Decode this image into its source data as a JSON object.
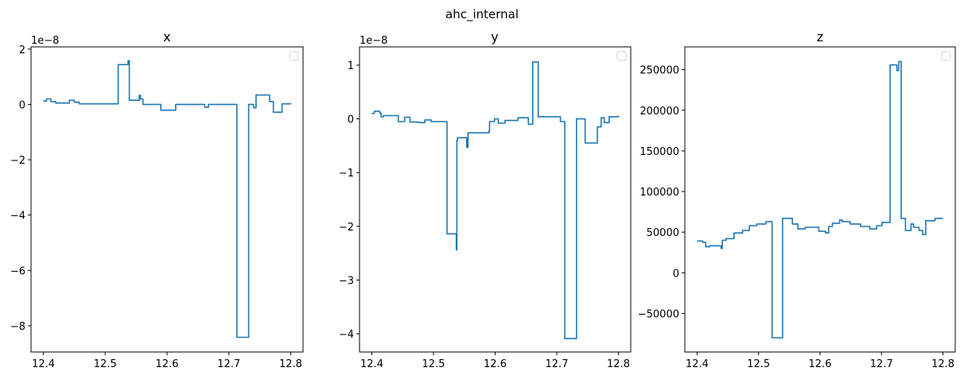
{
  "figure_title": "ahc_internal",
  "line_color": "#1f77b4",
  "chart_data": [
    {
      "type": "line",
      "title": "x",
      "offset_text": "1e−8",
      "xlim": [
        12.38,
        12.82
      ],
      "ylim": [
        -8.95,
        2.08
      ],
      "xticks": [
        12.4,
        12.5,
        12.6,
        12.7,
        12.8
      ],
      "xtick_labels": [
        "12.4",
        "12.5",
        "12.6",
        "12.7",
        "12.8"
      ],
      "yticks": [
        2,
        0,
        -2,
        -4,
        -6,
        -8
      ],
      "ytick_labels": [
        "2",
        "0",
        "−2",
        "−4",
        "−6",
        "−8"
      ],
      "legend": "empty, top-right",
      "steps": [
        [
          12.4,
          0.12
        ],
        [
          12.405,
          0.2
        ],
        [
          12.412,
          0.1
        ],
        [
          12.42,
          0.05
        ],
        [
          12.442,
          0.15
        ],
        [
          12.45,
          0.08
        ],
        [
          12.458,
          0.02
        ],
        [
          12.521,
          1.44
        ],
        [
          12.537,
          1.58
        ],
        [
          12.539,
          0.15
        ],
        [
          12.555,
          0.33
        ],
        [
          12.557,
          0.2
        ],
        [
          12.561,
          0.0
        ],
        [
          12.59,
          -0.21
        ],
        [
          12.614,
          0.0
        ],
        [
          12.661,
          -0.1
        ],
        [
          12.667,
          0.0
        ],
        [
          12.713,
          -8.42
        ],
        [
          12.732,
          0.0
        ],
        [
          12.74,
          -0.12
        ],
        [
          12.744,
          0.34
        ],
        [
          12.766,
          0.1
        ],
        [
          12.772,
          -0.28
        ],
        [
          12.786,
          0.02
        ],
        [
          12.8,
          0.05
        ]
      ]
    },
    {
      "type": "line",
      "title": "y",
      "offset_text": "1e−8",
      "xlim": [
        12.38,
        12.82
      ],
      "ylim": [
        -4.34,
        1.34
      ],
      "xticks": [
        12.4,
        12.5,
        12.6,
        12.7,
        12.8
      ],
      "xtick_labels": [
        "12.4",
        "12.5",
        "12.6",
        "12.7",
        "12.8"
      ],
      "yticks": [
        1,
        0,
        -1,
        -2,
        -3,
        -4
      ],
      "ytick_labels": [
        "1",
        "0",
        "−1",
        "−2",
        "−3",
        "−4"
      ],
      "legend": "empty, top-right",
      "steps": [
        [
          12.4,
          0.1
        ],
        [
          12.404,
          0.14
        ],
        [
          12.413,
          0.11
        ],
        [
          12.415,
          0.04
        ],
        [
          12.419,
          0.06
        ],
        [
          12.443,
          -0.05
        ],
        [
          12.453,
          0.03
        ],
        [
          12.462,
          -0.06
        ],
        [
          12.477,
          -0.07
        ],
        [
          12.486,
          -0.02
        ],
        [
          12.496,
          -0.05
        ],
        [
          12.522,
          -2.14
        ],
        [
          12.537,
          -2.44
        ],
        [
          12.538,
          -0.4
        ],
        [
          12.539,
          -0.35
        ],
        [
          12.554,
          -0.53
        ],
        [
          12.556,
          -0.26
        ],
        [
          12.59,
          -0.23
        ],
        [
          12.591,
          -0.05
        ],
        [
          12.599,
          0.0
        ],
        [
          12.605,
          -0.08
        ],
        [
          12.616,
          -0.03
        ],
        [
          12.637,
          0.02
        ],
        [
          12.654,
          -0.1
        ],
        [
          12.661,
          1.06
        ],
        [
          12.67,
          0.04
        ],
        [
          12.706,
          -0.05
        ],
        [
          12.713,
          -4.09
        ],
        [
          12.732,
          0.0
        ],
        [
          12.746,
          -0.45
        ],
        [
          12.766,
          -0.15
        ],
        [
          12.772,
          0.02
        ],
        [
          12.777,
          -0.07
        ],
        [
          12.785,
          0.04
        ],
        [
          12.8,
          0.06
        ]
      ]
    },
    {
      "type": "line",
      "title": "z",
      "offset_text": "",
      "xlim": [
        12.38,
        12.82
      ],
      "ylim": [
        -97500,
        278000
      ],
      "xticks": [
        12.4,
        12.5,
        12.6,
        12.7,
        12.8
      ],
      "xtick_labels": [
        "12.4",
        "12.5",
        "12.6",
        "12.7",
        "12.8"
      ],
      "yticks": [
        250000,
        200000,
        150000,
        100000,
        50000,
        0,
        -50000
      ],
      "ytick_labels": [
        "250000",
        "200000",
        "150000",
        "100000",
        "50000",
        "0",
        "−50000"
      ],
      "legend": "empty, top-right",
      "steps": [
        [
          12.4,
          39100
        ],
        [
          12.409,
          37500
        ],
        [
          12.414,
          32000
        ],
        [
          12.42,
          33200
        ],
        [
          12.439,
          30000
        ],
        [
          12.441,
          40000
        ],
        [
          12.447,
          42000
        ],
        [
          12.46,
          49000
        ],
        [
          12.474,
          52000
        ],
        [
          12.485,
          58000
        ],
        [
          12.497,
          60000
        ],
        [
          12.512,
          63000
        ],
        [
          12.522,
          -79900
        ],
        [
          12.539,
          67000
        ],
        [
          12.555,
          60000
        ],
        [
          12.564,
          54000
        ],
        [
          12.576,
          56000
        ],
        [
          12.598,
          51000
        ],
        [
          12.609,
          49000
        ],
        [
          12.614,
          57000
        ],
        [
          12.62,
          61000
        ],
        [
          12.632,
          65000
        ],
        [
          12.636,
          63000
        ],
        [
          12.649,
          60000
        ],
        [
          12.666,
          57000
        ],
        [
          12.681,
          54000
        ],
        [
          12.692,
          58000
        ],
        [
          12.701,
          62000
        ],
        [
          12.714,
          255800
        ],
        [
          12.725,
          249000
        ],
        [
          12.728,
          260000
        ],
        [
          12.732,
          67000
        ],
        [
          12.739,
          52000
        ],
        [
          12.748,
          60000
        ],
        [
          12.752,
          56000
        ],
        [
          12.761,
          52000
        ],
        [
          12.767,
          47000
        ],
        [
          12.772,
          64000
        ],
        [
          12.787,
          67000
        ],
        [
          12.8,
          67000
        ]
      ]
    }
  ]
}
